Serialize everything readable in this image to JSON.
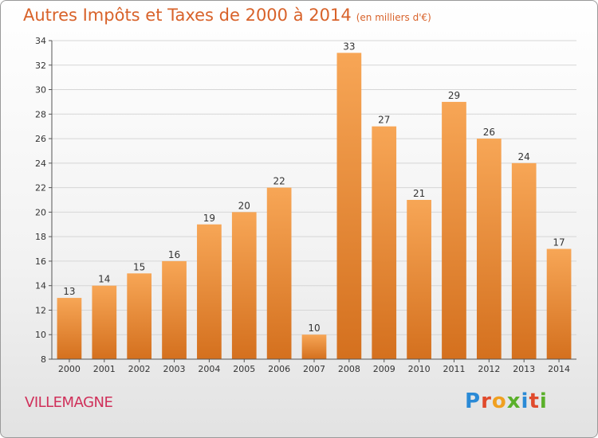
{
  "header": {
    "title": "Autres Impôts et Taxes de 2000 à 2014",
    "subtitle": "(en milliers d'€)"
  },
  "footer": {
    "city": "VILLEMAGNE"
  },
  "logo": {
    "letters": [
      "P",
      "r",
      "o",
      "x",
      "i",
      "t",
      "i"
    ],
    "colors": [
      "#2a8ad6",
      "#e04a2c",
      "#f0a020",
      "#5ab02a",
      "#2a8ad6",
      "#e04a2c",
      "#5ab02a"
    ]
  },
  "chart_data": {
    "type": "bar",
    "title": "Autres Impôts et Taxes de 2000 à 2014",
    "subtitle": "(en milliers d'€)",
    "xlabel": "",
    "ylabel": "",
    "categories": [
      "2000",
      "2001",
      "2002",
      "2003",
      "2004",
      "2005",
      "2006",
      "2007",
      "2008",
      "2009",
      "2010",
      "2011",
      "2012",
      "2013",
      "2014"
    ],
    "values": [
      13,
      14,
      15,
      16,
      19,
      20,
      22,
      10,
      33,
      27,
      21,
      29,
      26,
      24,
      17
    ],
    "ylim": [
      8,
      34
    ],
    "yticks": [
      8,
      10,
      12,
      14,
      16,
      18,
      20,
      22,
      24,
      26,
      28,
      30,
      32,
      34
    ],
    "grid": true,
    "bar_color_top": "#f7a656",
    "bar_color_bottom": "#d4701e"
  }
}
